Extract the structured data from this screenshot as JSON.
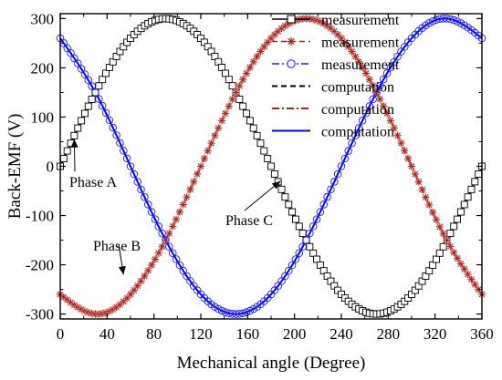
{
  "chart_data": {
    "type": "line",
    "xlabel": "Mechanical angle (Degree)",
    "ylabel": "Back-EMF (V)",
    "xlim": [
      0,
      360
    ],
    "ylim": [
      -310,
      310
    ],
    "x_ticks": [
      0,
      40,
      80,
      120,
      160,
      200,
      240,
      280,
      320,
      360
    ],
    "y_ticks": [
      -300,
      -200,
      -100,
      0,
      100,
      200,
      300
    ],
    "grid": false,
    "legend_position": "top-right",
    "series": [
      {
        "name": "measurement",
        "phase": "A",
        "style": "measurement",
        "marker": "square",
        "dash": "solid",
        "color": "#000000",
        "x": [
          0,
          30,
          60,
          90,
          120,
          150,
          180,
          210,
          240,
          270,
          300,
          330,
          360
        ],
        "y": [
          0,
          150,
          260,
          300,
          260,
          150,
          0,
          -150,
          -260,
          -300,
          -260,
          -150,
          0
        ]
      },
      {
        "name": "measurement",
        "phase": "B",
        "style": "measurement",
        "marker": "star",
        "dash": "dashed",
        "color": "#a52a1a",
        "x": [
          0,
          30,
          60,
          90,
          120,
          150,
          180,
          210,
          240,
          270,
          300,
          330,
          360
        ],
        "y": [
          -260,
          -300,
          -260,
          -150,
          0,
          150,
          260,
          300,
          260,
          150,
          0,
          -150,
          -260
        ]
      },
      {
        "name": "measurement",
        "phase": "C",
        "style": "measurement",
        "marker": "circle",
        "dash": "dashdot",
        "color": "#1a1aff",
        "x": [
          0,
          30,
          60,
          90,
          120,
          150,
          180,
          210,
          240,
          270,
          300,
          330,
          360
        ],
        "y": [
          260,
          150,
          0,
          -150,
          -260,
          -300,
          -260,
          -150,
          0,
          150,
          260,
          300,
          260
        ]
      },
      {
        "name": "computation",
        "phase": "A",
        "style": "computation",
        "marker": "none",
        "dash": "dashed",
        "color": "#000000",
        "x": [
          0,
          30,
          60,
          90,
          120,
          150,
          180,
          210,
          240,
          270,
          300,
          330,
          360
        ],
        "y": [
          0,
          150,
          260,
          300,
          260,
          150,
          0,
          -150,
          -260,
          -300,
          -260,
          -150,
          0
        ]
      },
      {
        "name": "computation",
        "phase": "B",
        "style": "computation",
        "marker": "none",
        "dash": "dashdot",
        "color": "#a52a1a",
        "x": [
          0,
          30,
          60,
          90,
          120,
          150,
          180,
          210,
          240,
          270,
          300,
          330,
          360
        ],
        "y": [
          -260,
          -300,
          -260,
          -150,
          0,
          150,
          260,
          300,
          260,
          150,
          0,
          -150,
          -260
        ]
      },
      {
        "name": "computation",
        "phase": "C",
        "style": "computation",
        "marker": "none",
        "dash": "solid",
        "color": "#0000ff",
        "x": [
          0,
          30,
          60,
          90,
          120,
          150,
          180,
          210,
          240,
          270,
          300,
          330,
          360
        ],
        "y": [
          260,
          150,
          0,
          -150,
          -260,
          -300,
          -260,
          -150,
          0,
          150,
          260,
          300,
          260
        ]
      }
    ],
    "annotations": [
      {
        "text": "Phase A",
        "arrow_to": [
          12,
          55
        ]
      },
      {
        "text": "Phase B",
        "arrow_to": [
          54,
          -220
        ]
      },
      {
        "text": "Phase C",
        "arrow_to": [
          188,
          -30
        ]
      }
    ]
  }
}
